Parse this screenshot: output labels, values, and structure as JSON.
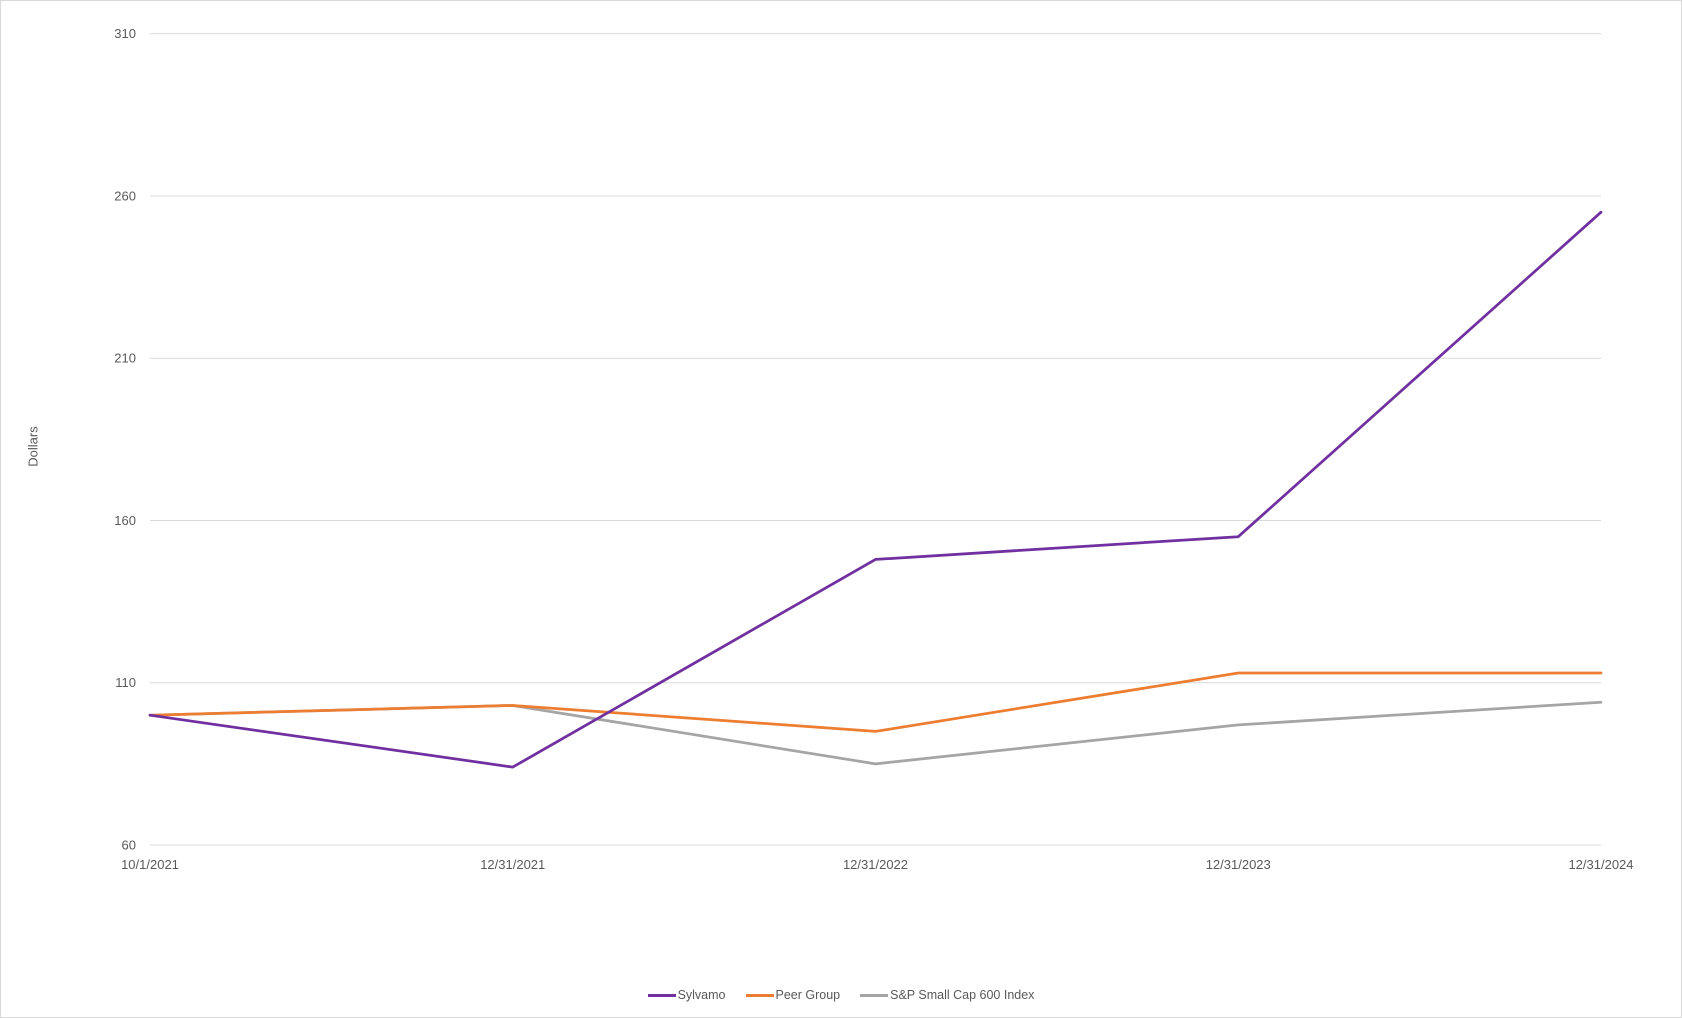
{
  "chart_data": {
    "type": "line",
    "title": "",
    "xlabel": "",
    "ylabel": "Dollars",
    "categories": [
      "10/1/2021",
      "12/31/2021",
      "12/31/2022",
      "12/31/2023",
      "12/31/2024"
    ],
    "y_ticks": [
      60,
      110,
      160,
      210,
      260,
      310
    ],
    "ylim": [
      60,
      310
    ],
    "grid": true,
    "legend_position": "bottom",
    "series": [
      {
        "name": "Sylvamo",
        "color": "#7030A0",
        "values": [
          100,
          84,
          148,
          155,
          255
        ]
      },
      {
        "name": "Peer Group",
        "color": "#ED7D31",
        "values": [
          100,
          103,
          95,
          113,
          113
        ]
      },
      {
        "name": "S&P Small Cap 600 Index",
        "color": "#A5A5A5",
        "values": [
          100,
          103,
          85,
          97,
          104
        ]
      }
    ]
  },
  "axis": {
    "y_label": "Dollars"
  },
  "legend": {
    "items": [
      {
        "label": "Sylvamo",
        "color": "#7030A0"
      },
      {
        "label": "Peer Group",
        "color": "#ED7D31"
      },
      {
        "label": "S&P Small Cap 600 Index",
        "color": "#A5A5A5"
      }
    ]
  }
}
